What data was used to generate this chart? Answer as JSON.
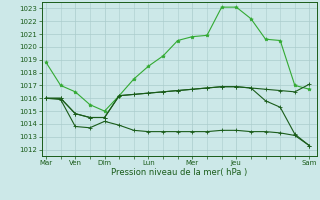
{
  "background_color": "#cce8e8",
  "grid_color": "#aacccc",
  "line_color_dark": "#1a5c1a",
  "line_color_bright": "#33aa33",
  "xlabel": "Pression niveau de la mer( hPa )",
  "ylim": [
    1011.5,
    1023.5
  ],
  "yticks": [
    1012,
    1013,
    1014,
    1015,
    1016,
    1017,
    1018,
    1019,
    1020,
    1021,
    1022,
    1023
  ],
  "x_tick_labels": [
    "Mar",
    "Ven",
    "Dim",
    "Lun",
    "Mer",
    "Jeu",
    "Sam"
  ],
  "x_tick_positions": [
    0,
    2,
    4,
    7,
    10,
    13,
    18
  ],
  "series1_x": [
    0,
    1,
    2,
    3,
    4,
    5,
    6,
    7,
    8,
    9,
    10,
    11,
    12,
    13,
    14,
    15,
    16,
    17,
    18
  ],
  "series1_y": [
    1018.8,
    1017.0,
    1016.5,
    1015.5,
    1015.0,
    1016.2,
    1017.5,
    1018.5,
    1019.3,
    1020.5,
    1020.8,
    1020.9,
    1023.1,
    1023.1,
    1022.2,
    1020.6,
    1020.5,
    1017.0,
    1016.7
  ],
  "series2_x": [
    0,
    1,
    2,
    3,
    4,
    5,
    6,
    7,
    8,
    9,
    10,
    11,
    12,
    13,
    14,
    15,
    16,
    17,
    18
  ],
  "series2_y": [
    1016.0,
    1016.0,
    1014.8,
    1014.5,
    1014.5,
    1016.2,
    1016.3,
    1016.4,
    1016.5,
    1016.6,
    1016.7,
    1016.8,
    1016.9,
    1016.9,
    1016.8,
    1016.7,
    1016.6,
    1016.5,
    1017.1
  ],
  "series3_x": [
    0,
    1,
    2,
    3,
    4,
    5,
    6,
    7,
    8,
    9,
    10,
    11,
    12,
    13,
    14,
    15,
    16,
    17,
    18
  ],
  "series3_y": [
    1016.0,
    1016.0,
    1014.8,
    1014.5,
    1014.5,
    1016.2,
    1016.3,
    1016.4,
    1016.5,
    1016.6,
    1016.7,
    1016.8,
    1016.9,
    1016.9,
    1016.8,
    1015.8,
    1015.3,
    1013.2,
    1012.3
  ],
  "series4_x": [
    0,
    1,
    2,
    3,
    4,
    5,
    6,
    7,
    8,
    9,
    10,
    11,
    12,
    13,
    14,
    15,
    16,
    17,
    18
  ],
  "series4_y": [
    1016.0,
    1015.9,
    1013.8,
    1013.7,
    1014.2,
    1013.9,
    1013.5,
    1013.4,
    1013.4,
    1013.4,
    1013.4,
    1013.4,
    1013.5,
    1013.5,
    1013.4,
    1013.4,
    1013.3,
    1013.1,
    1012.3
  ]
}
